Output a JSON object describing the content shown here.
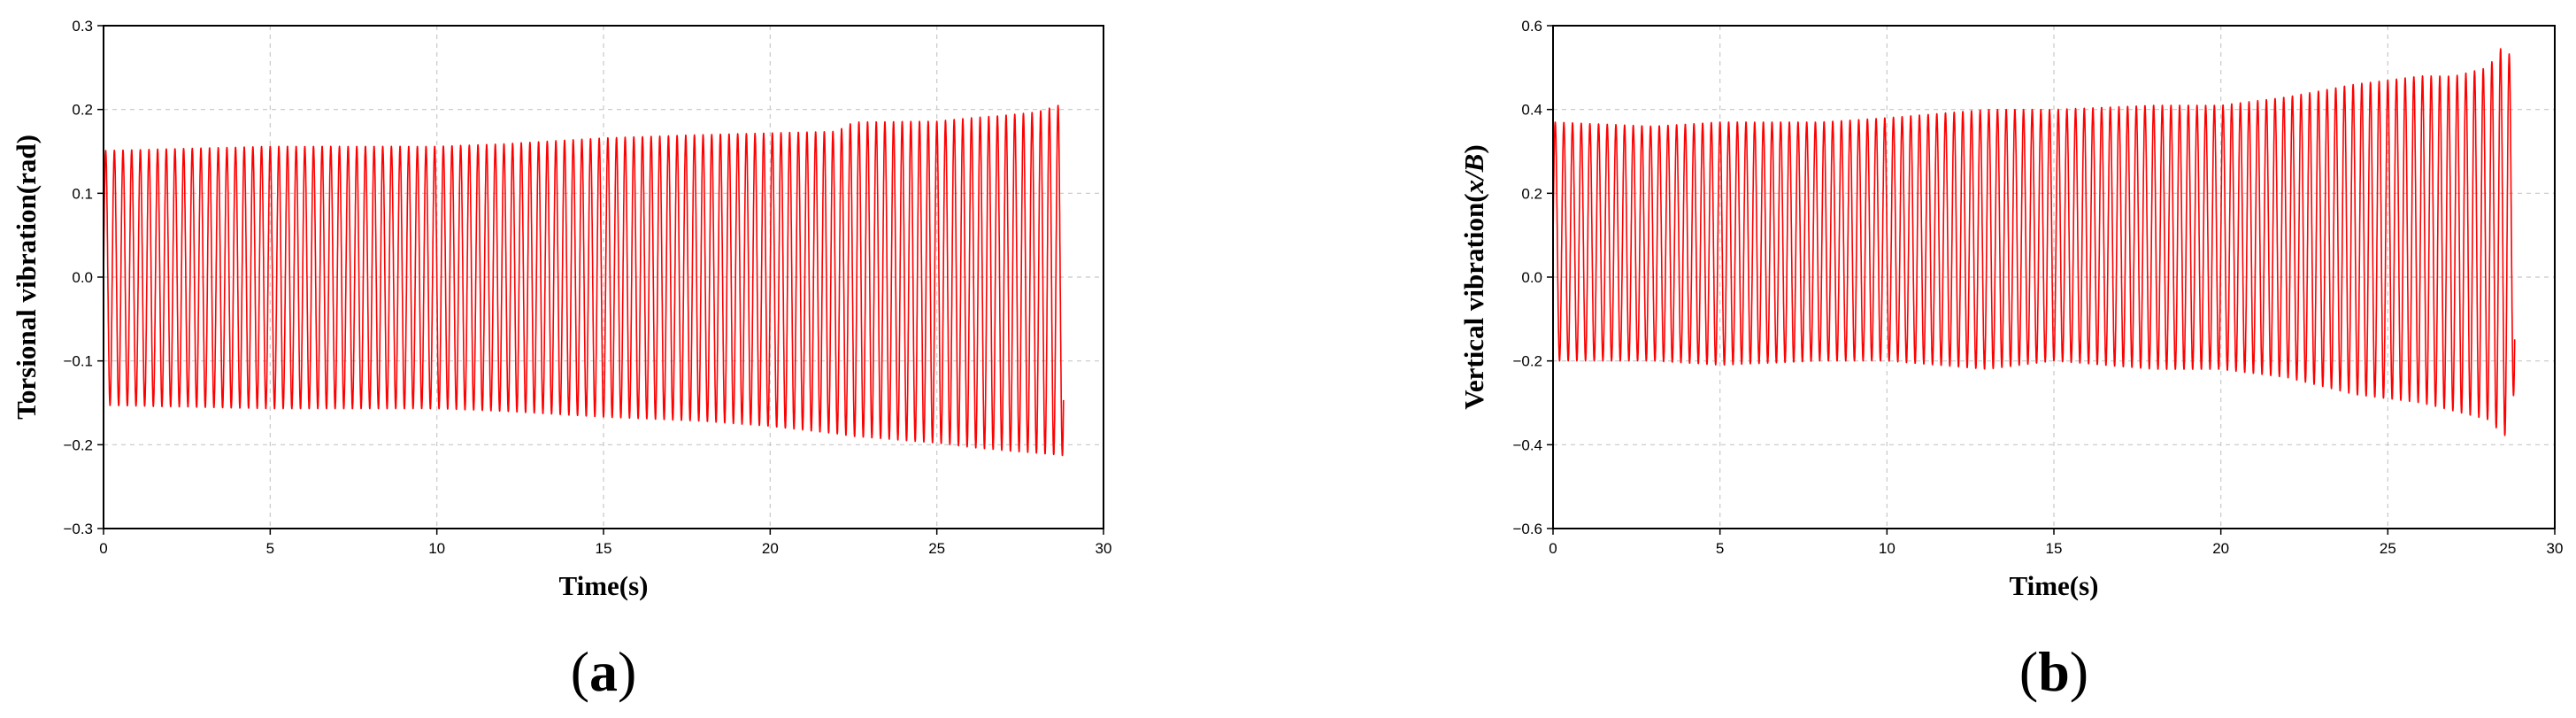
{
  "chart_data": [
    {
      "type": "line",
      "panel_label": "a",
      "xlabel": "Time(s)",
      "ylabel": "Torsional vibration(rad)",
      "xlim": [
        0,
        30
      ],
      "ylim": [
        -0.3,
        0.3
      ],
      "xticks": [
        0,
        5,
        10,
        15,
        20,
        25,
        30
      ],
      "yticks": [
        -0.3,
        -0.2,
        -0.1,
        0.0,
        0.1,
        0.2,
        0.3
      ],
      "xtick_labels": [
        "0",
        "5",
        "10",
        "15",
        "20",
        "25",
        "30"
      ],
      "ytick_labels": [
        "−0.3",
        "−0.2",
        "−0.1",
        "0.0",
        "0.1",
        "0.2",
        "0.3"
      ],
      "grid": true,
      "color": "#ff0000",
      "signal": {
        "form": "oscillation",
        "t_end": 28.8,
        "frequency_hz": 3.85,
        "envelope": {
          "t": [
            0,
            5,
            10,
            12,
            15,
            18,
            20,
            22,
            22.5,
            25,
            26,
            27,
            28,
            28.8
          ],
          "upper": [
            0.151,
            0.156,
            0.156,
            0.159,
            0.166,
            0.17,
            0.172,
            0.174,
            0.185,
            0.186,
            0.19,
            0.193,
            0.197,
            0.207
          ],
          "lower": [
            -0.153,
            -0.157,
            -0.157,
            -0.16,
            -0.167,
            -0.172,
            -0.178,
            -0.187,
            -0.19,
            -0.198,
            -0.203,
            -0.207,
            -0.21,
            -0.213
          ]
        }
      }
    },
    {
      "type": "line",
      "panel_label": "b",
      "xlabel": "Time(s)",
      "ylabel_prefix": "Vertical vibration(",
      "ylabel_var": "x/B",
      "ylabel_suffix": ")",
      "xlim": [
        0,
        30
      ],
      "ylim": [
        -0.6,
        0.6
      ],
      "xticks": [
        0,
        5,
        10,
        15,
        20,
        25,
        30
      ],
      "yticks": [
        -0.6,
        -0.4,
        -0.2,
        0.0,
        0.2,
        0.4,
        0.6
      ],
      "xtick_labels": [
        "0",
        "5",
        "10",
        "15",
        "20",
        "25",
        "30"
      ],
      "ytick_labels": [
        "−0.6",
        "−0.4",
        "−0.2",
        "0.0",
        "0.2",
        "0.4",
        "0.6"
      ],
      "grid": true,
      "color": "#ff0000",
      "signal": {
        "form": "oscillation",
        "t_end": 28.8,
        "frequency_hz": 3.85,
        "envelope": {
          "t": [
            0,
            3,
            5,
            8,
            10,
            13,
            15,
            18,
            20,
            22,
            24,
            26,
            27,
            28,
            28.5,
            28.8
          ],
          "upper": [
            0.37,
            0.36,
            0.37,
            0.37,
            0.38,
            0.4,
            0.4,
            0.41,
            0.41,
            0.43,
            0.46,
            0.48,
            0.48,
            0.5,
            0.56,
            0.5
          ],
          "lower": [
            -0.2,
            -0.2,
            -0.21,
            -0.2,
            -0.2,
            -0.22,
            -0.2,
            -0.22,
            -0.22,
            -0.24,
            -0.28,
            -0.3,
            -0.32,
            -0.34,
            -0.38,
            -0.27
          ]
        }
      }
    }
  ]
}
